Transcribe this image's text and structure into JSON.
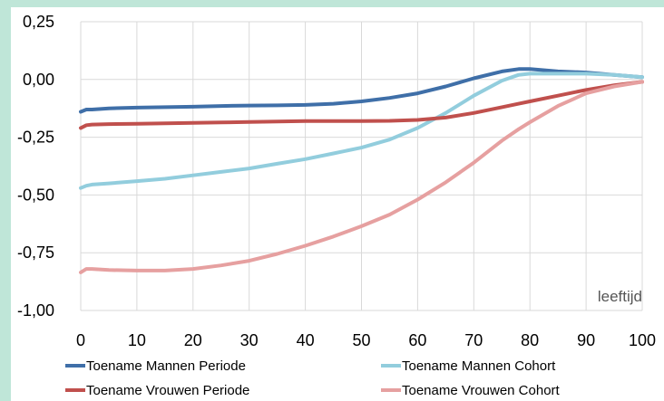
{
  "chart_data": {
    "type": "line",
    "xlabel": "leeftijd",
    "x": [
      0,
      1,
      2,
      5,
      10,
      15,
      20,
      25,
      30,
      35,
      40,
      45,
      50,
      55,
      60,
      65,
      70,
      75,
      78,
      80,
      85,
      90,
      95,
      100
    ],
    "xticks": [
      0,
      10,
      20,
      30,
      40,
      50,
      60,
      70,
      80,
      90,
      100
    ],
    "xlim": [
      0,
      100
    ],
    "ylim": [
      -1.0,
      0.25
    ],
    "yticks": [
      "0,25",
      "0,00",
      "-0,25",
      "-0,50",
      "-0,75",
      "-1,00"
    ],
    "ytick_values": [
      0.25,
      0.0,
      -0.25,
      -0.5,
      -0.75,
      -1.0
    ],
    "grid": true,
    "legend_position": "bottom",
    "series": [
      {
        "name": "Toename Mannen Periode",
        "color": "#3f6fa8",
        "values": [
          -0.14,
          -0.13,
          -0.13,
          -0.125,
          -0.122,
          -0.12,
          -0.118,
          -0.115,
          -0.113,
          -0.112,
          -0.11,
          -0.105,
          -0.095,
          -0.08,
          -0.06,
          -0.03,
          0.005,
          0.035,
          0.045,
          0.045,
          0.035,
          0.03,
          0.02,
          0.01
        ]
      },
      {
        "name": "Toename Mannen Cohort",
        "color": "#92cddd",
        "values": [
          -0.47,
          -0.46,
          -0.455,
          -0.45,
          -0.44,
          -0.43,
          -0.415,
          -0.4,
          -0.385,
          -0.365,
          -0.345,
          -0.32,
          -0.295,
          -0.26,
          -0.21,
          -0.145,
          -0.07,
          -0.005,
          0.02,
          0.025,
          0.025,
          0.025,
          0.02,
          0.01
        ]
      },
      {
        "name": "Toename Vrouwen Periode",
        "color": "#c0504d",
        "values": [
          -0.21,
          -0.198,
          -0.195,
          -0.193,
          -0.192,
          -0.19,
          -0.188,
          -0.186,
          -0.184,
          -0.182,
          -0.18,
          -0.18,
          -0.18,
          -0.179,
          -0.175,
          -0.165,
          -0.145,
          -0.12,
          -0.105,
          -0.095,
          -0.07,
          -0.045,
          -0.025,
          -0.01
        ]
      },
      {
        "name": "Toename Vrouwen Cohort",
        "color": "#e6a0a0",
        "values": [
          -0.835,
          -0.82,
          -0.82,
          -0.825,
          -0.827,
          -0.827,
          -0.82,
          -0.805,
          -0.785,
          -0.755,
          -0.72,
          -0.68,
          -0.635,
          -0.585,
          -0.52,
          -0.445,
          -0.36,
          -0.265,
          -0.215,
          -0.185,
          -0.115,
          -0.06,
          -0.03,
          -0.01
        ]
      }
    ]
  }
}
